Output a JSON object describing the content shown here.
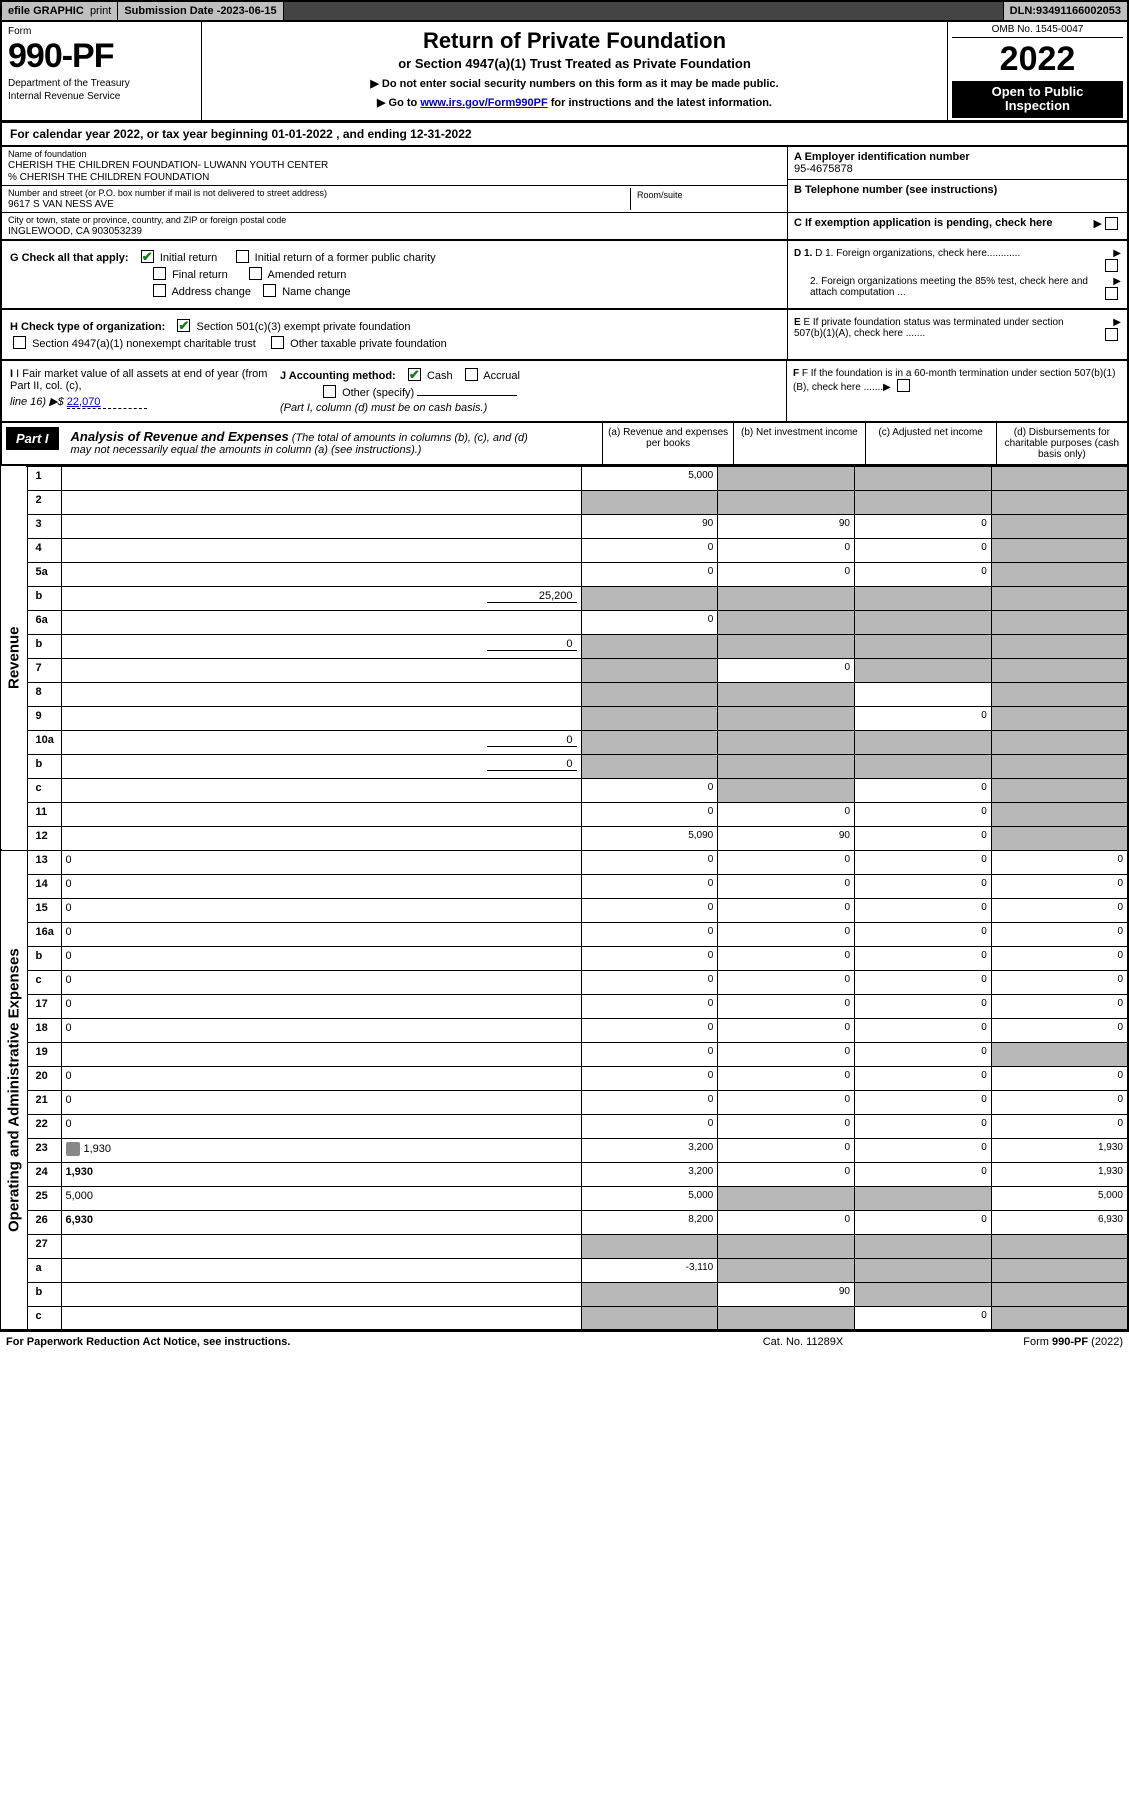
{
  "top": {
    "efile_prefix": "efile",
    "efile_label": "GRAPHIC",
    "print": "print",
    "sub_date_label": "Submission Date - ",
    "sub_date": "2023-06-15",
    "dln_label": "DLN: ",
    "dln": "93491166002053"
  },
  "header": {
    "form_word": "Form",
    "form_number": "990-PF",
    "dept1": "Department of the Treasury",
    "dept2": "Internal Revenue Service",
    "title": "Return of Private Foundation",
    "subtitle": "or Section 4947(a)(1) Trust Treated as Private Foundation",
    "note1": "▶ Do not enter social security numbers on this form as it may be made public.",
    "note2_prefix": "▶ Go to ",
    "note2_link": "www.irs.gov/Form990PF",
    "note2_suffix": " for instructions and the latest information.",
    "omb": "OMB No. 1545-0047",
    "year": "2022",
    "inspection1": "Open to Public",
    "inspection2": "Inspection"
  },
  "cal_year": "For calendar year 2022, or tax year beginning 01-01-2022                       , and ending 12-31-2022",
  "entity": {
    "name_lbl": "Name of foundation",
    "name": "CHERISH THE CHILDREN FOUNDATION- LUWANN YOUTH CENTER",
    "care_of": "% CHERISH THE CHILDREN FOUNDATION",
    "street_lbl": "Number and street (or P.O. box number if mail is not delivered to street address)",
    "street": "9617 S VAN NESS AVE",
    "room_lbl": "Room/suite",
    "room": "",
    "city_lbl": "City or town, state or province, country, and ZIP or foreign postal code",
    "city": "INGLEWOOD, CA  903053239",
    "A_lbl": "A Employer identification number",
    "A_val": "95-4675878",
    "B_lbl": "B Telephone number (see instructions)",
    "B_val": "",
    "C_lbl": "C If exemption application is pending, check here"
  },
  "G": {
    "label": "G Check all that apply:",
    "initial": "Initial return",
    "initial_former": "Initial return of a former public charity",
    "final": "Final return",
    "amended": "Amended return",
    "address": "Address change",
    "name_change": "Name change"
  },
  "H": {
    "label": "H Check type of organization:",
    "c3": "Section 501(c)(3) exempt private foundation",
    "sec4947": "Section 4947(a)(1) nonexempt charitable trust",
    "other_tax": "Other taxable private foundation"
  },
  "I": {
    "label_pre": "I Fair market value of all assets at end of year (from Part II, col. (c),",
    "line16": "line 16) ▶$ ",
    "value": "22,070"
  },
  "J": {
    "label": "J Accounting method:",
    "cash": "Cash",
    "accrual": "Accrual",
    "other": "Other (specify)",
    "note": "(Part I, column (d) must be on cash basis.)"
  },
  "D": {
    "d1": "D 1. Foreign organizations, check here............",
    "d2": "2. Foreign organizations meeting the 85% test, check here and attach computation ..."
  },
  "E": "E If private foundation status was terminated under section 507(b)(1)(A), check here .......",
  "F": "F If the foundation is in a 60-month termination under section 507(b)(1)(B), check here .......",
  "part1": {
    "label": "Part I",
    "title": "Analysis of Revenue and Expenses",
    "title_paren": " (The total of amounts in columns (b), (c), and (d) may not necessarily equal the amounts in column (a) (see instructions).)",
    "col_a": "(a) Revenue and expenses per books",
    "col_b": "(b) Net investment income",
    "col_c": "(c) Adjusted net income",
    "col_d": "(d) Disbursements for charitable purposes (cash basis only)"
  },
  "side_labels": {
    "revenue": "Revenue",
    "expenses": "Operating and Administrative Expenses"
  },
  "rows": [
    {
      "n": "1",
      "d": "",
      "a": "5,000",
      "b": "",
      "c": "",
      "shade": [
        "b",
        "c",
        "d"
      ]
    },
    {
      "n": "2",
      "d": "",
      "a": "",
      "b": "",
      "c": "",
      "shade": [
        "a",
        "b",
        "c",
        "d"
      ]
    },
    {
      "n": "3",
      "d": "",
      "a": "90",
      "b": "90",
      "c": "0",
      "shade": [
        "d"
      ]
    },
    {
      "n": "4",
      "d": "",
      "a": "0",
      "b": "0",
      "c": "0",
      "shade": [
        "d"
      ]
    },
    {
      "n": "5a",
      "d": "",
      "a": "0",
      "b": "0",
      "c": "0",
      "shade": [
        "d"
      ]
    },
    {
      "n": "b",
      "d": "",
      "inline": "25,200",
      "a": "",
      "b": "",
      "c": "",
      "shade": [
        "a",
        "b",
        "c",
        "d"
      ]
    },
    {
      "n": "6a",
      "d": "",
      "a": "0",
      "b": "",
      "c": "",
      "shade": [
        "b",
        "c",
        "d"
      ]
    },
    {
      "n": "b",
      "d": "",
      "inline": "0",
      "a": "",
      "b": "",
      "c": "",
      "shade": [
        "a",
        "b",
        "c",
        "d"
      ]
    },
    {
      "n": "7",
      "d": "",
      "a": "",
      "b": "0",
      "c": "",
      "shade": [
        "a",
        "c",
        "d"
      ]
    },
    {
      "n": "8",
      "d": "",
      "a": "",
      "b": "",
      "c": "",
      "shade": [
        "a",
        "b",
        "d"
      ]
    },
    {
      "n": "9",
      "d": "",
      "a": "",
      "b": "",
      "c": "0",
      "shade": [
        "a",
        "b",
        "d"
      ]
    },
    {
      "n": "10a",
      "d": "",
      "inline": "0",
      "a": "",
      "b": "",
      "c": "",
      "shade": [
        "a",
        "b",
        "c",
        "d"
      ]
    },
    {
      "n": "b",
      "d": "",
      "inline": "0",
      "a": "",
      "b": "",
      "c": "",
      "shade": [
        "a",
        "b",
        "c",
        "d"
      ]
    },
    {
      "n": "c",
      "d": "",
      "a": "0",
      "b": "",
      "c": "0",
      "shade": [
        "b",
        "d"
      ]
    },
    {
      "n": "11",
      "d": "",
      "a": "0",
      "b": "0",
      "c": "0",
      "shade": [
        "d"
      ]
    },
    {
      "n": "12",
      "d": "",
      "bold": true,
      "a": "5,090",
      "b": "90",
      "c": "0",
      "shade": [
        "d"
      ]
    },
    {
      "n": "13",
      "d": "0",
      "a": "0",
      "b": "0",
      "c": "0"
    },
    {
      "n": "14",
      "d": "0",
      "a": "0",
      "b": "0",
      "c": "0"
    },
    {
      "n": "15",
      "d": "0",
      "a": "0",
      "b": "0",
      "c": "0"
    },
    {
      "n": "16a",
      "d": "0",
      "a": "0",
      "b": "0",
      "c": "0"
    },
    {
      "n": "b",
      "d": "0",
      "a": "0",
      "b": "0",
      "c": "0"
    },
    {
      "n": "c",
      "d": "0",
      "a": "0",
      "b": "0",
      "c": "0"
    },
    {
      "n": "17",
      "d": "0",
      "a": "0",
      "b": "0",
      "c": "0"
    },
    {
      "n": "18",
      "d": "0",
      "a": "0",
      "b": "0",
      "c": "0"
    },
    {
      "n": "19",
      "d": "",
      "a": "0",
      "b": "0",
      "c": "0",
      "shade": [
        "d"
      ]
    },
    {
      "n": "20",
      "d": "0",
      "a": "0",
      "b": "0",
      "c": "0"
    },
    {
      "n": "21",
      "d": "0",
      "a": "0",
      "b": "0",
      "c": "0"
    },
    {
      "n": "22",
      "d": "0",
      "a": "0",
      "b": "0",
      "c": "0"
    },
    {
      "n": "23",
      "d": "1,930",
      "icon": true,
      "a": "3,200",
      "b": "0",
      "c": "0"
    },
    {
      "n": "24",
      "d": "1,930",
      "bold": true,
      "a": "3,200",
      "b": "0",
      "c": "0"
    },
    {
      "n": "25",
      "d": "5,000",
      "a": "5,000",
      "b": "",
      "c": "",
      "shade": [
        "b",
        "c"
      ]
    },
    {
      "n": "26",
      "d": "6,930",
      "bold": true,
      "a": "8,200",
      "b": "0",
      "c": "0"
    },
    {
      "n": "27",
      "d": "",
      "a": "",
      "b": "",
      "c": "",
      "shade": [
        "a",
        "b",
        "c",
        "d"
      ]
    },
    {
      "n": "a",
      "d": "",
      "bold": true,
      "a": "-3,110",
      "b": "",
      "c": "",
      "shade": [
        "b",
        "c",
        "d"
      ]
    },
    {
      "n": "b",
      "d": "",
      "bold": true,
      "a": "",
      "b": "90",
      "c": "",
      "shade": [
        "a",
        "c",
        "d"
      ]
    },
    {
      "n": "c",
      "d": "",
      "bold": true,
      "a": "",
      "b": "",
      "c": "0",
      "shade": [
        "a",
        "b",
        "d"
      ]
    }
  ],
  "footer": {
    "left": "For Paperwork Reduction Act Notice, see instructions.",
    "mid": "Cat. No. 11289X",
    "right": "Form 990-PF (2022)"
  },
  "style": {
    "colors": {
      "shade": "#b8b8b8",
      "topbar_bg": "#c0c0c0",
      "link": "#0000cc",
      "check": "#1a7a1a",
      "black": "#000000"
    }
  }
}
